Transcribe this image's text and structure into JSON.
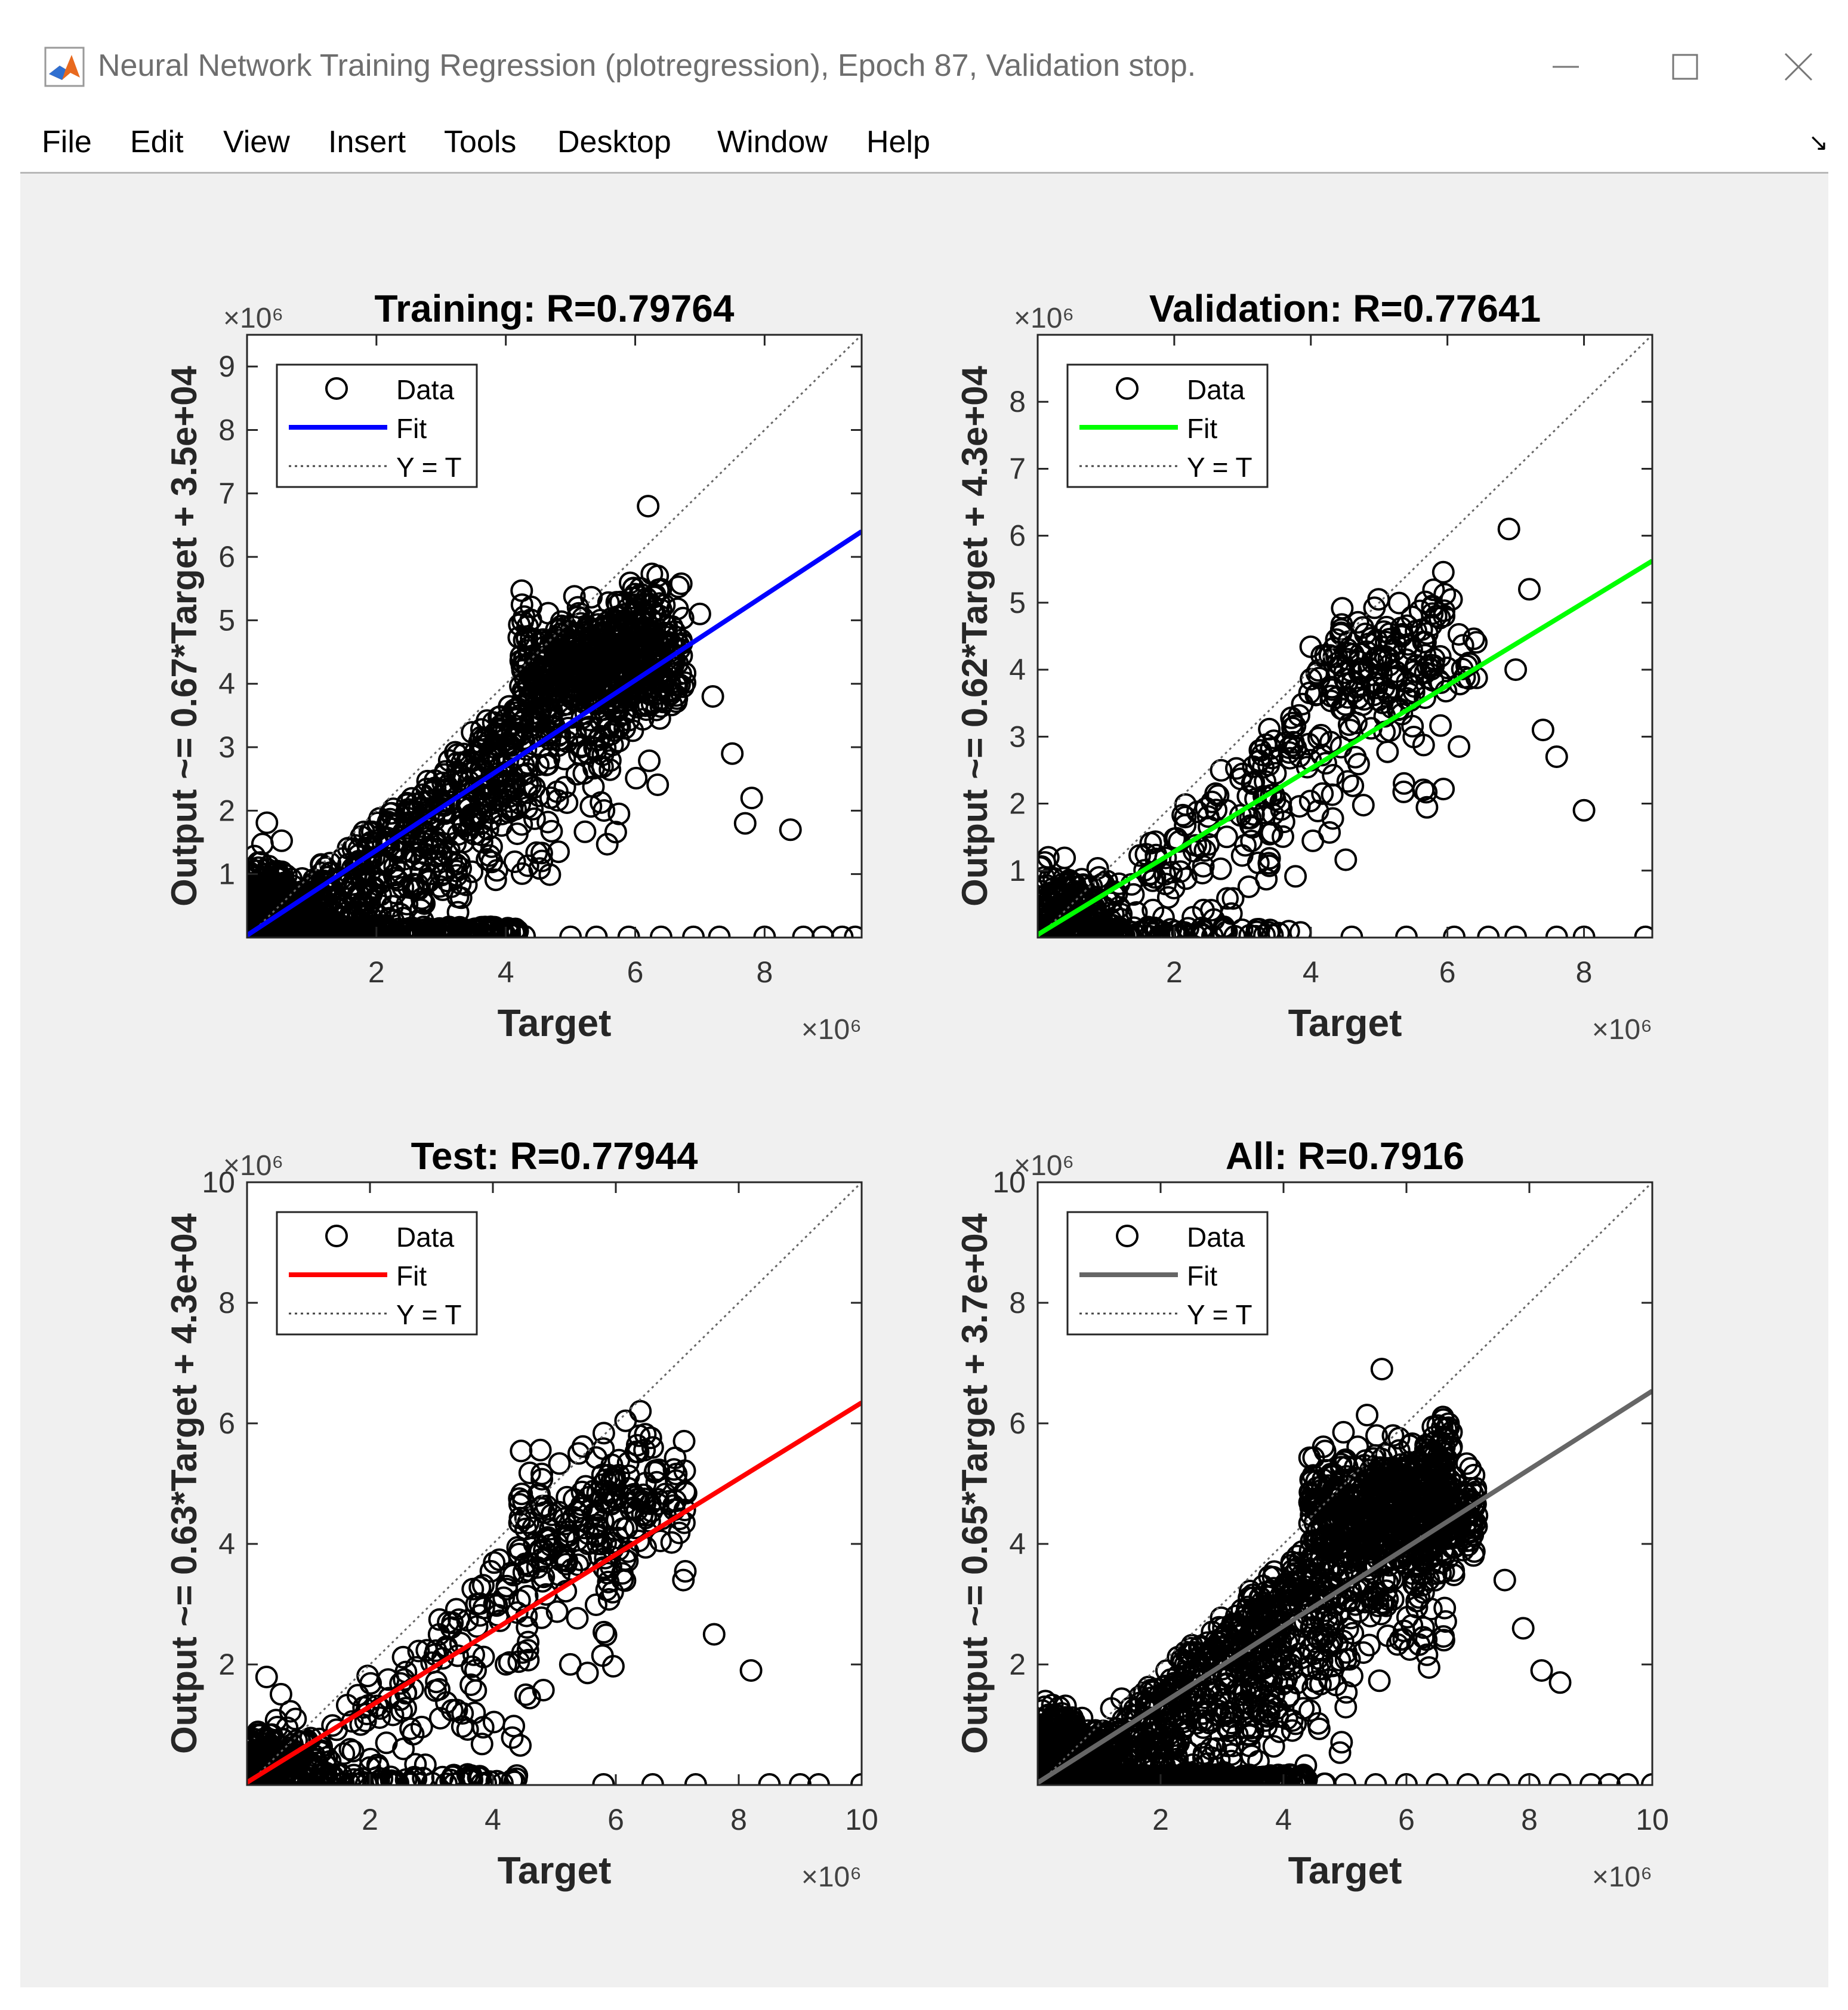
{
  "window": {
    "title": "Neural Network Training Regression (plotregression), Epoch 87, Validation stop.",
    "icon": "matlab-icon",
    "controls": [
      "minimize-icon",
      "maximize-icon",
      "close-icon"
    ]
  },
  "menu": {
    "items": [
      "File",
      "Edit",
      "View",
      "Insert",
      "Tools",
      "Desktop",
      "Window",
      "Help"
    ],
    "dock_icon": "dock-arrow-icon",
    "dock_glyph": "↘"
  },
  "colors": {
    "training_fit": "#0000ff",
    "validation_fit": "#00ff00",
    "test_fit": "#ff0000",
    "all_fit": "#666666",
    "background": "#f0f0f0"
  },
  "chart_data": [
    {
      "type": "scatter",
      "title": "Training: R=0.79764",
      "xlabel": "Target",
      "ylabel": "Output ~= 0.67*Target + 3.5e+04",
      "x_multiplier": "×10⁶",
      "y_multiplier": "×10⁶",
      "xlim": [
        0,
        9.5
      ],
      "ylim": [
        0,
        9.5
      ],
      "xticks": [
        2,
        4,
        6,
        8
      ],
      "yticks": [
        1,
        2,
        3,
        4,
        5,
        6,
        7,
        8,
        9
      ],
      "fit": {
        "slope": 0.67,
        "intercept": 0.035,
        "color": "#0000ff"
      },
      "legend": [
        "Data",
        "Fit",
        "Y = T"
      ],
      "legend_position": "top-left",
      "density": 1.0,
      "outliers": [
        [
          6.2,
          6.8
        ],
        [
          7.0,
          5.1
        ],
        [
          7.2,
          3.8
        ],
        [
          7.5,
          2.9
        ],
        [
          7.8,
          2.2
        ],
        [
          8.4,
          1.7
        ],
        [
          7.7,
          1.8
        ]
      ],
      "zero_row": [
        5.0,
        5.4,
        5.9,
        6.4,
        6.9,
        7.3,
        8.0,
        8.6,
        8.9,
        9.2,
        9.4
      ]
    },
    {
      "type": "scatter",
      "title": "Validation: R=0.77641",
      "xlabel": "Target",
      "ylabel": "Output ~= 0.62*Target + 4.3e+04",
      "x_multiplier": "×10⁶",
      "y_multiplier": "×10⁶",
      "xlim": [
        0,
        9
      ],
      "ylim": [
        0,
        9
      ],
      "xticks": [
        2,
        4,
        6,
        8
      ],
      "yticks": [
        1,
        2,
        3,
        4,
        5,
        6,
        7,
        8
      ],
      "fit": {
        "slope": 0.62,
        "intercept": 0.043,
        "color": "#00ff00"
      },
      "legend": [
        "Data",
        "Fit",
        "Y = T"
      ],
      "legend_position": "top-left",
      "density": 0.3,
      "outliers": [
        [
          6.9,
          6.1
        ],
        [
          7.2,
          5.2
        ],
        [
          7.4,
          3.1
        ],
        [
          7.6,
          2.7
        ],
        [
          8.0,
          1.9
        ],
        [
          7.0,
          4.0
        ]
      ],
      "zero_row": [
        4.6,
        5.4,
        6.1,
        6.6,
        7.0,
        7.6,
        8.0,
        8.9
      ]
    },
    {
      "type": "scatter",
      "title": "Test: R=0.77944",
      "xlabel": "Target",
      "ylabel": "Output ~= 0.63*Target + 4.3e+04",
      "x_multiplier": "×10⁶",
      "y_multiplier": "×10⁶",
      "xlim": [
        0,
        10
      ],
      "ylim": [
        0,
        10
      ],
      "xticks": [
        2,
        4,
        6,
        8,
        10
      ],
      "yticks": [
        2,
        4,
        6,
        8,
        10
      ],
      "fit": {
        "slope": 0.63,
        "intercept": 0.043,
        "color": "#ff0000"
      },
      "legend": [
        "Data",
        "Fit",
        "Y = T"
      ],
      "legend_position": "top-left",
      "density": 0.3,
      "outliers": [
        [
          6.4,
          6.2
        ],
        [
          7.1,
          3.4
        ],
        [
          7.6,
          2.5
        ],
        [
          8.2,
          1.9
        ],
        [
          6.6,
          5.6
        ]
      ],
      "zero_row": [
        5.8,
        6.6,
        7.3,
        8.5,
        9.0,
        9.3,
        10.0
      ]
    },
    {
      "type": "scatter",
      "title": "All: R=0.7916",
      "xlabel": "Target",
      "ylabel": "Output ~= 0.65*Target + 3.7e+04",
      "x_multiplier": "×10⁶",
      "y_multiplier": "×10⁶",
      "xlim": [
        0,
        10
      ],
      "ylim": [
        0,
        10
      ],
      "xticks": [
        2,
        4,
        6,
        8,
        10
      ],
      "yticks": [
        2,
        4,
        6,
        8,
        10
      ],
      "fit": {
        "slope": 0.65,
        "intercept": 0.037,
        "color": "#666666"
      },
      "legend": [
        "Data",
        "Fit",
        "Y = T"
      ],
      "legend_position": "top-left",
      "density": 1.2,
      "outliers": [
        [
          5.6,
          6.9
        ],
        [
          7.1,
          4.6
        ],
        [
          7.6,
          3.4
        ],
        [
          7.9,
          2.6
        ],
        [
          8.2,
          1.9
        ],
        [
          8.5,
          1.7
        ]
      ],
      "zero_row": [
        5.0,
        5.5,
        6.0,
        6.5,
        7.0,
        7.5,
        8.0,
        8.5,
        9.0,
        9.3,
        9.6,
        10.0
      ]
    }
  ]
}
